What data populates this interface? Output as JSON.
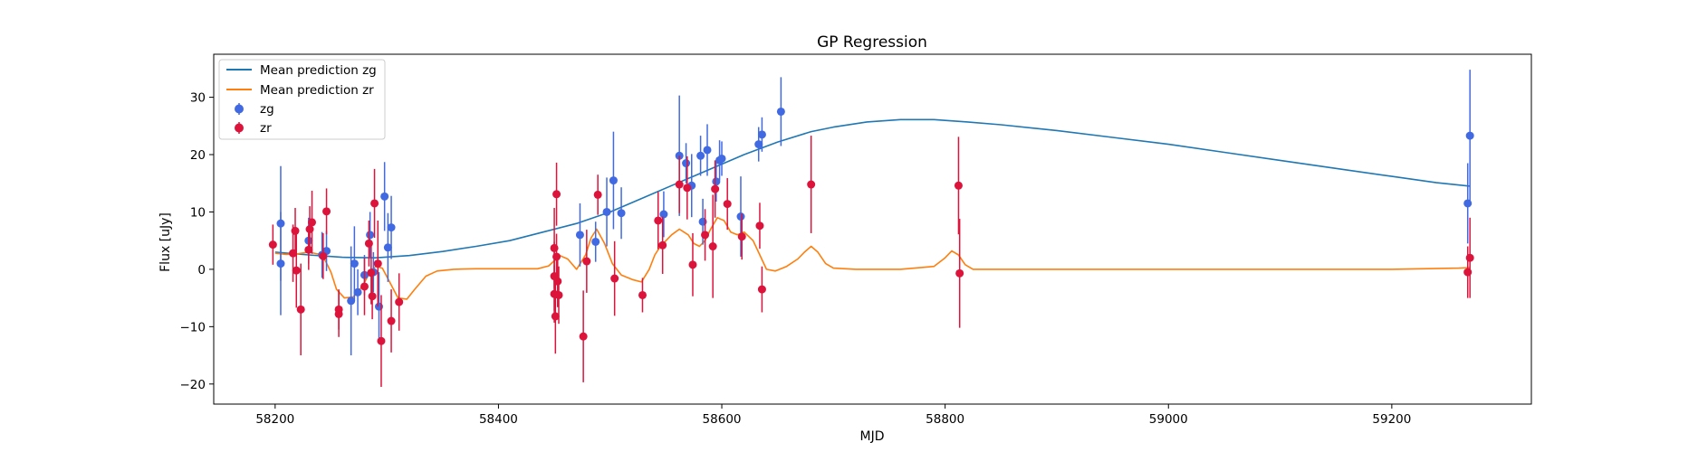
{
  "chart_data": {
    "type": "scatter",
    "title": "GP Regression",
    "xlabel": "MJD",
    "ylabel": "Flux [uJy]",
    "xlim": [
      58145,
      59325
    ],
    "ylim": [
      -23.5,
      37.5
    ],
    "xticks": [
      58200,
      58400,
      58600,
      58800,
      59000,
      59200
    ],
    "yticks": [
      -20,
      -10,
      0,
      10,
      20,
      30
    ],
    "grid": false,
    "legend_position": "top-left",
    "lines": [
      {
        "name": "Mean prediction zg",
        "color": "#1f77b4",
        "x": [
          58200,
          58230,
          58260,
          58290,
          58320,
          58350,
          58380,
          58410,
          58440,
          58470,
          58500,
          58530,
          58560,
          58590,
          58620,
          58650,
          58680,
          58700,
          58730,
          58760,
          58790,
          58820,
          58850,
          58900,
          58950,
          59000,
          59050,
          59100,
          59150,
          59200,
          59240,
          59270
        ],
        "y": [
          3.0,
          2.5,
          2.1,
          2.0,
          2.4,
          3.1,
          4.0,
          5.0,
          6.5,
          8.0,
          10.0,
          12.5,
          15.0,
          17.5,
          20.0,
          22.2,
          24.0,
          24.8,
          25.7,
          26.1,
          26.1,
          25.7,
          25.2,
          24.2,
          23.0,
          21.8,
          20.4,
          19.0,
          17.6,
          16.2,
          15.1,
          14.5
        ]
      },
      {
        "name": "Mean prediction zr",
        "color": "#ff7f0e",
        "x": [
          58200,
          58210,
          58220,
          58230,
          58240,
          58245,
          58250,
          58255,
          58262,
          58270,
          58278,
          58285,
          58290,
          58296,
          58302,
          58310,
          58318,
          58325,
          58335,
          58345,
          58360,
          58380,
          58400,
          58420,
          58435,
          58445,
          58450,
          58455,
          58462,
          58470,
          58478,
          58483,
          58488,
          58495,
          58502,
          58510,
          58520,
          58528,
          58535,
          58540,
          58545,
          58550,
          58555,
          58562,
          58570,
          58575,
          58580,
          58585,
          58590,
          58596,
          58602,
          58608,
          58614,
          58620,
          58628,
          58634,
          58640,
          58648,
          58658,
          58668,
          58674,
          58680,
          58686,
          58693,
          58700,
          58720,
          58760,
          58790,
          58800,
          58806,
          58812,
          58818,
          58825,
          58835,
          58860,
          58950,
          59100,
          59200,
          59260,
          59270
        ],
        "y": [
          2.8,
          2.6,
          2.7,
          3.0,
          2.6,
          1.5,
          -0.5,
          -3.5,
          -5.0,
          -4.8,
          -3.0,
          -0.5,
          0.5,
          0.2,
          -2.0,
          -5.0,
          -5.2,
          -3.5,
          -1.2,
          -0.3,
          0.0,
          0.1,
          0.1,
          0.1,
          0.1,
          0.6,
          1.5,
          2.4,
          1.8,
          0.0,
          2.5,
          5.5,
          7.0,
          4.5,
          1.0,
          -1.0,
          -1.8,
          -2.2,
          0.0,
          2.5,
          4.0,
          5.0,
          6.0,
          7.0,
          6.0,
          4.5,
          4.0,
          5.0,
          7.0,
          9.0,
          8.5,
          6.5,
          6.0,
          6.5,
          5.0,
          2.5,
          0.0,
          -0.3,
          0.5,
          1.8,
          3.0,
          4.0,
          3.0,
          1.0,
          0.2,
          0.0,
          0.0,
          0.5,
          2.0,
          3.2,
          2.5,
          0.8,
          0.0,
          0.0,
          0.0,
          0.0,
          0.0,
          0.0,
          0.2,
          0.3
        ]
      }
    ],
    "series": [
      {
        "name": "zg",
        "color": "#4169e1",
        "points": [
          {
            "x": 58205,
            "y": 8.0,
            "err": 10.0
          },
          {
            "x": 58205,
            "y": 1.0,
            "err": 9.0
          },
          {
            "x": 58230,
            "y": 5.0,
            "err": 4.0
          },
          {
            "x": 58242,
            "y": 2.5,
            "err": 4.0
          },
          {
            "x": 58246,
            "y": 3.2,
            "err": 3.5
          },
          {
            "x": 58268,
            "y": -5.5,
            "err": 9.5
          },
          {
            "x": 58271,
            "y": 1.0,
            "err": 6.5
          },
          {
            "x": 58274,
            "y": -4.0,
            "err": 4.0
          },
          {
            "x": 58280,
            "y": -1.0,
            "err": 3.5
          },
          {
            "x": 58285,
            "y": 6.0,
            "err": 4.0
          },
          {
            "x": 58288,
            "y": -0.5,
            "err": 3.5
          },
          {
            "x": 58293,
            "y": -6.5,
            "err": 6.0
          },
          {
            "x": 58298,
            "y": 12.7,
            "err": 6.0
          },
          {
            "x": 58301,
            "y": 3.8,
            "err": 6.0
          },
          {
            "x": 58304,
            "y": 7.3,
            "err": 5.5
          },
          {
            "x": 58473,
            "y": 6.0,
            "err": 5.5
          },
          {
            "x": 58487,
            "y": 4.8,
            "err": 3.5
          },
          {
            "x": 58497,
            "y": 10.0,
            "err": 6.0
          },
          {
            "x": 58503,
            "y": 15.5,
            "err": 8.5
          },
          {
            "x": 58510,
            "y": 9.8,
            "err": 4.5
          },
          {
            "x": 58548,
            "y": 9.6,
            "err": 4.0
          },
          {
            "x": 58562,
            "y": 19.8,
            "err": 10.5
          },
          {
            "x": 58568,
            "y": 18.5,
            "err": 3.5
          },
          {
            "x": 58573,
            "y": 14.6,
            "err": 5.5
          },
          {
            "x": 58581,
            "y": 19.8,
            "err": 3.5
          },
          {
            "x": 58583,
            "y": 8.3,
            "err": 4.0
          },
          {
            "x": 58587,
            "y": 20.8,
            "err": 4.5
          },
          {
            "x": 58595,
            "y": 15.3,
            "err": 3.5
          },
          {
            "x": 58598,
            "y": 19.0,
            "err": 3.5
          },
          {
            "x": 58600,
            "y": 19.3,
            "err": 3.0
          },
          {
            "x": 58617,
            "y": 9.2,
            "err": 7.0
          },
          {
            "x": 58633,
            "y": 21.8,
            "err": 3.0
          },
          {
            "x": 58636,
            "y": 23.5,
            "err": 3.0
          },
          {
            "x": 58653,
            "y": 27.5,
            "err": 6.0
          },
          {
            "x": 59268,
            "y": 11.5,
            "err": 7.0
          },
          {
            "x": 59270,
            "y": 23.3,
            "err": 11.5
          }
        ]
      },
      {
        "name": "zr",
        "color": "#dc143c",
        "points": [
          {
            "x": 58198,
            "y": 4.3,
            "err": 3.5
          },
          {
            "x": 58216,
            "y": 2.8,
            "err": 5.0
          },
          {
            "x": 58218,
            "y": 6.7,
            "err": 4.0
          },
          {
            "x": 58219,
            "y": -0.2,
            "err": 6.5
          },
          {
            "x": 58223,
            "y": -7.0,
            "err": 8.0
          },
          {
            "x": 58230,
            "y": 3.4,
            "err": 3.5
          },
          {
            "x": 58231,
            "y": 7.0,
            "err": 4.0
          },
          {
            "x": 58233,
            "y": 8.2,
            "err": 5.5
          },
          {
            "x": 58243,
            "y": 2.3,
            "err": 4.0
          },
          {
            "x": 58246,
            "y": 10.1,
            "err": 4.0
          },
          {
            "x": 58257,
            "y": -7.0,
            "err": 3.5
          },
          {
            "x": 58257,
            "y": -7.8,
            "err": 4.0
          },
          {
            "x": 58280,
            "y": -3.0,
            "err": 5.0
          },
          {
            "x": 58284,
            "y": 4.5,
            "err": 4.0
          },
          {
            "x": 58286,
            "y": -0.6,
            "err": 5.5
          },
          {
            "x": 58287,
            "y": -4.7,
            "err": 4.0
          },
          {
            "x": 58289,
            "y": 11.5,
            "err": 6.0
          },
          {
            "x": 58292,
            "y": 1.0,
            "err": 7.5
          },
          {
            "x": 58295,
            "y": -12.5,
            "err": 8.0
          },
          {
            "x": 58304,
            "y": -9.0,
            "err": 5.5
          },
          {
            "x": 58311,
            "y": -5.7,
            "err": 5.0
          },
          {
            "x": 58450,
            "y": 3.7,
            "err": 7.0
          },
          {
            "x": 58450,
            "y": -1.2,
            "err": 6.0
          },
          {
            "x": 58450,
            "y": -4.3,
            "err": 5.0
          },
          {
            "x": 58451,
            "y": -8.2,
            "err": 6.5
          },
          {
            "x": 58452,
            "y": 13.1,
            "err": 5.5
          },
          {
            "x": 58452,
            "y": 2.2,
            "err": 4.0
          },
          {
            "x": 58453,
            "y": -2.1,
            "err": 4.5
          },
          {
            "x": 58454,
            "y": -4.5,
            "err": 5.0
          },
          {
            "x": 58476,
            "y": -11.7,
            "err": 8.0
          },
          {
            "x": 58479,
            "y": 1.4,
            "err": 5.5
          },
          {
            "x": 58489,
            "y": 13.0,
            "err": 3.5
          },
          {
            "x": 58504,
            "y": -1.6,
            "err": 6.5
          },
          {
            "x": 58529,
            "y": -4.5,
            "err": 3.0
          },
          {
            "x": 58543,
            "y": 8.5,
            "err": 5.0
          },
          {
            "x": 58547,
            "y": 4.2,
            "err": 5.0
          },
          {
            "x": 58562,
            "y": 14.8,
            "err": 5.0
          },
          {
            "x": 58569,
            "y": 14.2,
            "err": 5.5
          },
          {
            "x": 58574,
            "y": 0.8,
            "err": 5.5
          },
          {
            "x": 58585,
            "y": 6.0,
            "err": 4.5
          },
          {
            "x": 58592,
            "y": 4.0,
            "err": 9.0
          },
          {
            "x": 58594,
            "y": 14.0,
            "err": 5.0
          },
          {
            "x": 58605,
            "y": 11.4,
            "err": 4.5
          },
          {
            "x": 58618,
            "y": 5.7,
            "err": 4.0
          },
          {
            "x": 58634,
            "y": 7.6,
            "err": 4.0
          },
          {
            "x": 58636,
            "y": -3.5,
            "err": 4.0
          },
          {
            "x": 58680,
            "y": 14.8,
            "err": 8.5
          },
          {
            "x": 58812,
            "y": 14.6,
            "err": 8.5
          },
          {
            "x": 58813,
            "y": -0.7,
            "err": 9.5
          },
          {
            "x": 59268,
            "y": -0.5,
            "err": 4.5
          },
          {
            "x": 59270,
            "y": 2.0,
            "err": 7.0
          }
        ]
      }
    ]
  }
}
